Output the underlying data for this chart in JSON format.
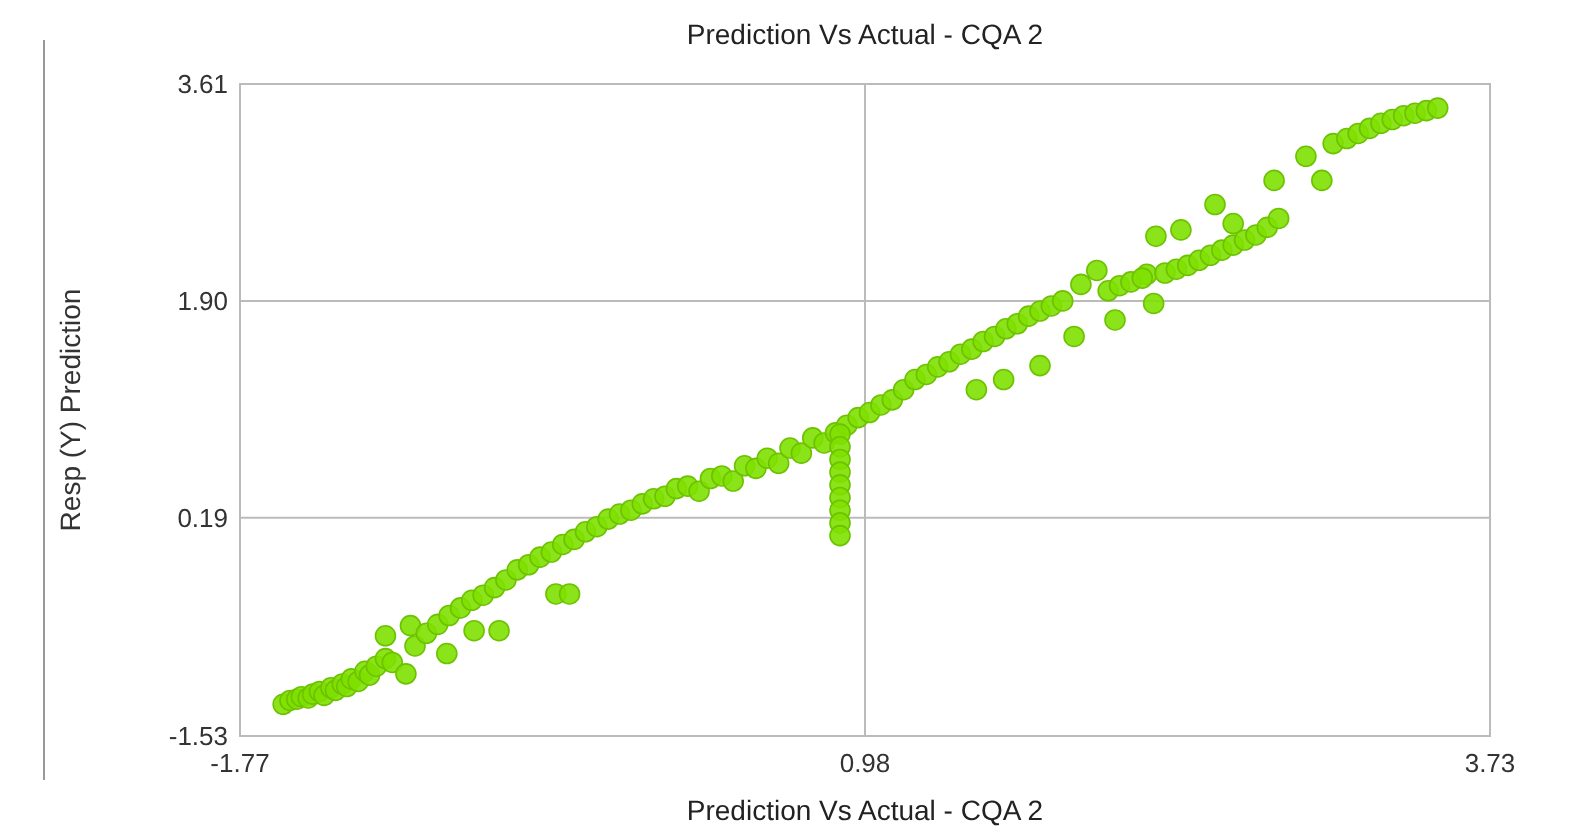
{
  "chart_data": {
    "type": "scatter",
    "title": "Prediction Vs Actual - CQA 2",
    "xlabel": "Prediction Vs Actual - CQA 2",
    "ylabel": "Resp (Y) Prediction",
    "xlim": [
      -1.77,
      3.73
    ],
    "xticks": [
      -1.77,
      0.98,
      3.73
    ],
    "ylim": [
      -1.53,
      3.61
    ],
    "yticks": [
      -1.53,
      0.19,
      {
        "value": 1.9,
        "label": "1.90"
      },
      3.61
    ],
    "grid": true,
    "marker": "circle",
    "series": [
      {
        "color": "#7ee000",
        "x": [
          -1.58,
          -1.55,
          -1.52,
          -1.5,
          -1.47,
          -1.45,
          -1.42,
          -1.4,
          -1.37,
          -1.35,
          -1.32,
          -1.3,
          -1.28,
          -1.25,
          -1.22,
          -1.2,
          -1.17,
          -1.13,
          -1.1,
          -1.13,
          -1.04,
          -1.02,
          -1,
          -0.95,
          -0.9,
          -0.86,
          -0.85,
          -0.8,
          -0.74,
          -0.75,
          -0.7,
          -0.63,
          -0.65,
          -0.6,
          -0.55,
          -0.5,
          -0.45,
          -0.4,
          -0.38,
          -0.32,
          -0.35,
          -0.3,
          -0.25,
          -0.2,
          -0.15,
          -0.1,
          -0.05,
          0,
          0.05,
          0.1,
          0.15,
          0.2,
          0.25,
          0.3,
          0.35,
          0.4,
          0.45,
          0.5,
          0.55,
          0.6,
          0.65,
          0.7,
          0.75,
          0.8,
          0.85,
          0.9,
          0.87,
          0.87,
          0.87,
          0.87,
          0.87,
          0.87,
          0.87,
          0.87,
          0.87,
          0.95,
          1,
          1.05,
          1.1,
          1.15,
          1.2,
          1.25,
          1.3,
          1.35,
          1.4,
          1.47,
          1.59,
          1.45,
          1.5,
          1.55,
          1.6,
          1.65,
          1.75,
          1.7,
          1.75,
          1.8,
          1.9,
          1.85,
          1.93,
          2,
          2.08,
          2.05,
          2.1,
          2.15,
          2.22,
          2.25,
          2.2,
          2.26,
          2.37,
          2.3,
          2.35,
          2.4,
          2.45,
          2.52,
          2.6,
          2.5,
          2.55,
          2.6,
          2.65,
          2.7,
          2.78,
          2.75,
          2.8,
          2.92,
          2.99,
          3.04,
          3.1,
          3.15,
          3.2,
          3.25,
          3.3,
          3.35,
          3.4,
          3.45,
          3.5
        ],
        "values": [
          -1.28,
          -1.25,
          -1.24,
          -1.22,
          -1.23,
          -1.2,
          -1.18,
          -1.21,
          -1.15,
          -1.17,
          -1.12,
          -1.14,
          -1.08,
          -1.1,
          -1.02,
          -1.05,
          -0.98,
          -0.92,
          -0.95,
          -0.74,
          -1.04,
          -0.66,
          -0.82,
          -0.72,
          -0.65,
          -0.88,
          -0.58,
          -0.52,
          -0.7,
          -0.46,
          -0.42,
          -0.7,
          -0.36,
          -0.3,
          -0.22,
          -0.18,
          -0.12,
          -0.08,
          -0.41,
          -0.41,
          -0.02,
          0.02,
          0.08,
          0.12,
          0.18,
          0.22,
          0.25,
          0.3,
          0.34,
          0.36,
          0.42,
          0.44,
          0.4,
          0.5,
          0.52,
          0.48,
          0.6,
          0.58,
          0.66,
          0.62,
          0.74,
          0.7,
          0.82,
          0.78,
          0.86,
          0.92,
          0.85,
          0.75,
          0.65,
          0.55,
          0.45,
          0.35,
          0.25,
          0.15,
          0.05,
          0.98,
          1.02,
          1.08,
          1.12,
          1.2,
          1.28,
          1.32,
          1.38,
          1.42,
          1.48,
          1.2,
          1.28,
          1.52,
          1.58,
          1.62,
          1.68,
          1.72,
          1.39,
          1.78,
          1.82,
          1.86,
          1.62,
          1.9,
          2.03,
          2.14,
          1.75,
          1.98,
          2.02,
          2.05,
          2.11,
          1.88,
          2.08,
          2.41,
          2.46,
          2.12,
          2.15,
          2.18,
          2.22,
          2.66,
          2.51,
          2.26,
          2.3,
          2.34,
          2.38,
          2.42,
          2.85,
          2.48,
          2.55,
          3.04,
          2.85,
          3.14,
          3.18,
          3.22,
          3.26,
          3.3,
          3.33,
          3.36,
          3.38,
          3.4,
          3.42
        ]
      }
    ]
  }
}
